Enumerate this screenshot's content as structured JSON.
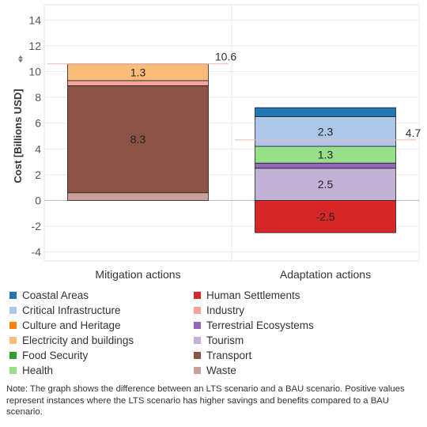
{
  "chart_data": {
    "type": "bar",
    "stacked": true,
    "ylabel": "Cost [Billions USD]",
    "ylim": [
      -5.5,
      15
    ],
    "yticks": [
      -4,
      -2,
      0,
      2,
      4,
      6,
      8,
      10,
      12,
      14
    ],
    "grid": true,
    "legend_position": "bottom",
    "categories": [
      "Mitigation actions",
      "Adaptation actions"
    ],
    "totals": [
      10.6,
      4.7
    ],
    "totals_labels": [
      "10.6",
      "4.7"
    ],
    "series": [
      {
        "name": "Waste",
        "color": "#c9a09a",
        "values": [
          0.6,
          0
        ]
      },
      {
        "name": "Transport",
        "color": "#8c5246",
        "values": [
          8.3,
          0
        ]
      },
      {
        "name": "Industry",
        "color": "#f8a39a",
        "values": [
          0.4,
          0
        ]
      },
      {
        "name": "Electricity and buildings",
        "color": "#f9bd79",
        "values": [
          1.3,
          0
        ]
      },
      {
        "name": "Human Settlements",
        "color": "#d62728",
        "values": [
          0,
          -2.5
        ]
      },
      {
        "name": "Tourism",
        "color": "#c4b1d6",
        "values": [
          0,
          2.5
        ]
      },
      {
        "name": "Terrestrial Ecosystems",
        "color": "#9467bd",
        "values": [
          0,
          0.4
        ]
      },
      {
        "name": "Health",
        "color": "#98df8a",
        "values": [
          0,
          1.3
        ]
      },
      {
        "name": "Critical Infrastructure",
        "color": "#aec7e8",
        "values": [
          0,
          2.3
        ]
      },
      {
        "name": "Coastal Areas",
        "color": "#1f77b4",
        "values": [
          0,
          0.7
        ]
      }
    ],
    "data_labels": [
      {
        "category": "Mitigation actions",
        "series": "Transport",
        "text": "8.3"
      },
      {
        "category": "Mitigation actions",
        "series": "Electricity and buildings",
        "text": "1.3"
      },
      {
        "category": "Adaptation actions",
        "series": "Human Settlements",
        "text": "-2.5"
      },
      {
        "category": "Adaptation actions",
        "series": "Tourism",
        "text": "2.5"
      },
      {
        "category": "Adaptation actions",
        "series": "Health",
        "text": "1.3"
      },
      {
        "category": "Adaptation actions",
        "series": "Critical Infrastructure",
        "text": "2.3"
      }
    ]
  },
  "legend": {
    "left": [
      {
        "label": "Coastal Areas",
        "color": "#1f77b4"
      },
      {
        "label": "Critical Infrastructure",
        "color": "#aec7e8"
      },
      {
        "label": "Culture and Heritage",
        "color": "#ff7f0e"
      },
      {
        "label": "Electricity and buildings",
        "color": "#f9bd79"
      },
      {
        "label": "Food Security",
        "color": "#2ca02c"
      },
      {
        "label": "Health",
        "color": "#98df8a"
      }
    ],
    "right": [
      {
        "label": "Human Settlements",
        "color": "#d62728"
      },
      {
        "label": "Industry",
        "color": "#f8a39a"
      },
      {
        "label": "Terrestrial Ecosystems",
        "color": "#9467bd"
      },
      {
        "label": "Tourism",
        "color": "#c4b1d6"
      },
      {
        "label": "Transport",
        "color": "#8c5246"
      },
      {
        "label": "Waste",
        "color": "#c9a09a"
      }
    ]
  },
  "note": "Note: The graph shows the difference between an LTS scenario and a BAU scenario. Positive values represent instances where the LTS scenario has higher savings and benefits compared to a BAU scenario."
}
